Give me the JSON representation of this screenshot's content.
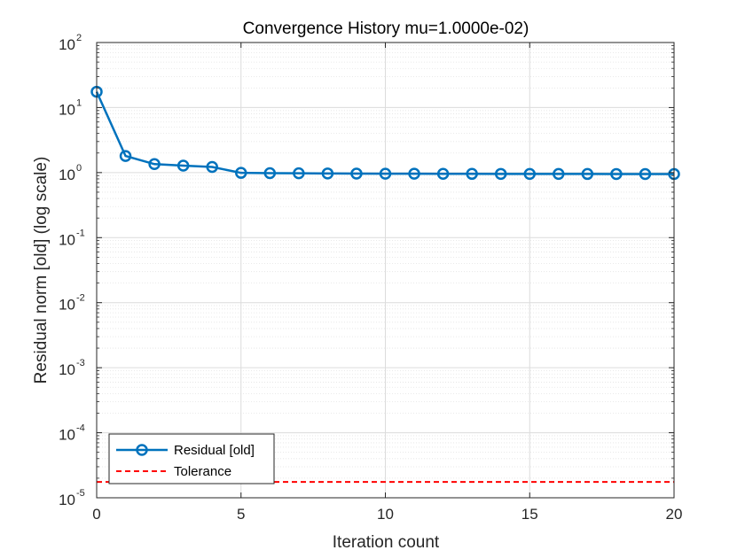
{
  "chart_data": {
    "type": "line",
    "title": "Convergence History mu=1.0000e-02)",
    "xlabel": "Iteration count",
    "ylabel": "Residual norm [old] (log scale)",
    "xlim": [
      0,
      20
    ],
    "ylim": [
      1e-05,
      100
    ],
    "yscale": "log",
    "grid": true,
    "minor_grid": true,
    "legend_position": "bottom-left",
    "x_ticks": [
      0,
      5,
      10,
      15,
      20
    ],
    "y_ticks": [
      {
        "base": "10",
        "exp": "-5",
        "value": 1e-05
      },
      {
        "base": "10",
        "exp": "-4",
        "value": 0.0001
      },
      {
        "base": "10",
        "exp": "-3",
        "value": 0.001
      },
      {
        "base": "10",
        "exp": "-2",
        "value": 0.01
      },
      {
        "base": "10",
        "exp": "-1",
        "value": 0.1
      },
      {
        "base": "10",
        "exp": "0",
        "value": 1
      },
      {
        "base": "10",
        "exp": "1",
        "value": 10
      },
      {
        "base": "10",
        "exp": "2",
        "value": 100
      }
    ],
    "series": [
      {
        "name": "Residual [old]",
        "color": "#0072BD",
        "marker": "circle",
        "style": "solid",
        "x": [
          0,
          1,
          2,
          3,
          4,
          5,
          6,
          7,
          8,
          9,
          10,
          11,
          12,
          13,
          14,
          15,
          16,
          17,
          18,
          19,
          20
        ],
        "y": [
          17.5,
          1.8,
          1.35,
          1.28,
          1.22,
          0.99,
          0.98,
          0.975,
          0.97,
          0.965,
          0.962,
          0.96,
          0.958,
          0.956,
          0.955,
          0.954,
          0.953,
          0.952,
          0.951,
          0.95,
          0.95
        ]
      },
      {
        "name": "Tolerance",
        "color": "#FF0000",
        "style": "dashed",
        "x": [
          0,
          20
        ],
        "y": [
          1.75e-05,
          1.75e-05
        ]
      }
    ]
  }
}
